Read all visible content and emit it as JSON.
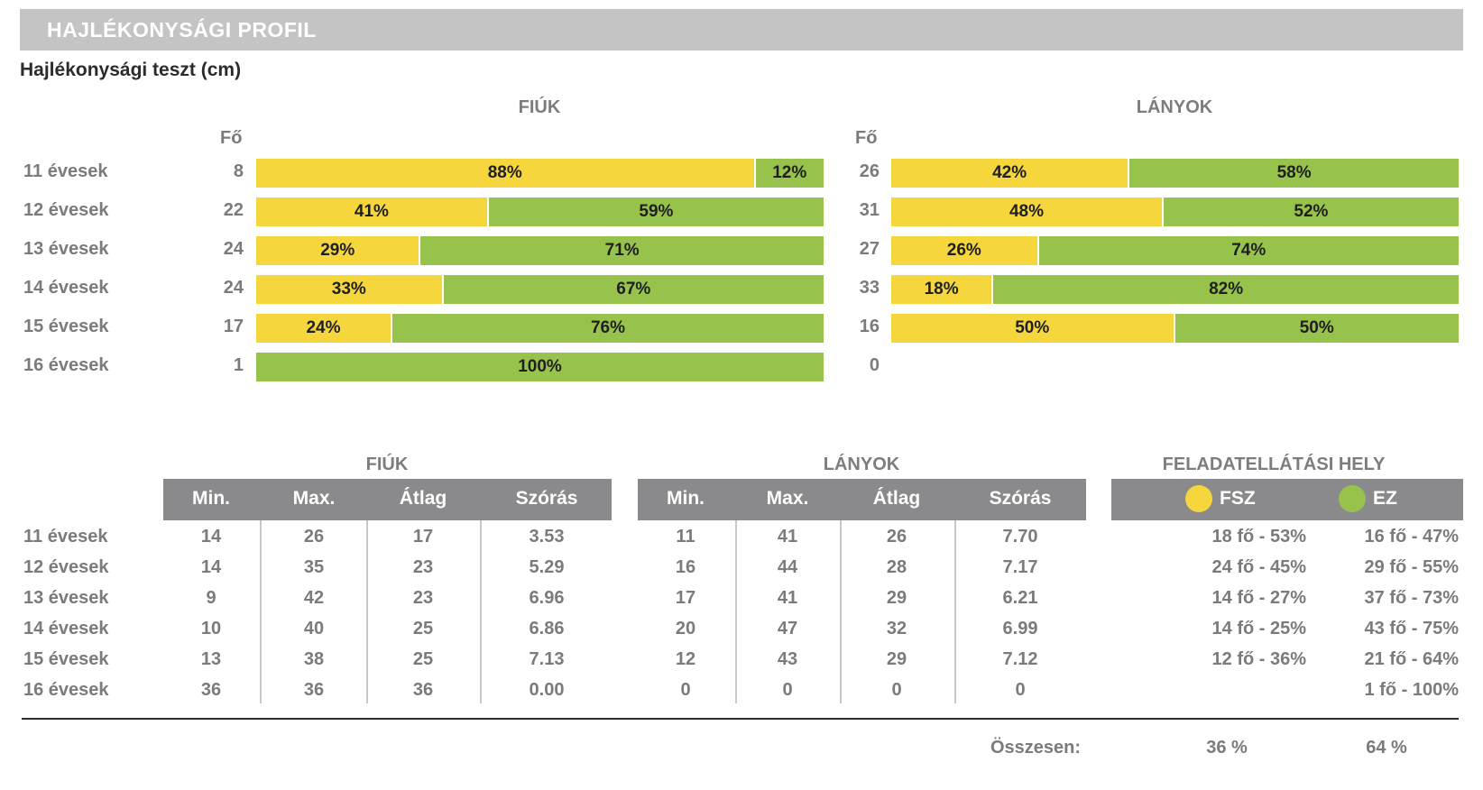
{
  "title": "HAJLÉKONYSÁGI PROFIL",
  "subtitle": "Hajlékonysági teszt (cm)",
  "colors": {
    "fsz": "#f5d63d",
    "ez": "#97c24c",
    "header_bg": "#8a8a8c",
    "banner_bg": "#c4c4c4"
  },
  "chart_data": {
    "type": "bar",
    "stacked": true,
    "orientation": "horizontal",
    "percent": true,
    "categories": [
      "11 évesek",
      "12 évesek",
      "13 évesek",
      "14 évesek",
      "15 évesek",
      "16 évesek"
    ],
    "count_header": "Fő",
    "panels": [
      {
        "title": "FIÚK",
        "counts": [
          "8",
          "22",
          "24",
          "24",
          "17",
          "1"
        ],
        "series": [
          {
            "values": [
              88,
              41,
              29,
              33,
              24,
              0
            ],
            "labels": [
              "88%",
              "41%",
              "29%",
              "33%",
              "24%",
              ""
            ]
          },
          {
            "values": [
              12,
              59,
              71,
              67,
              76,
              100
            ],
            "labels": [
              "12%",
              "59%",
              "71%",
              "67%",
              "76%",
              "100%"
            ]
          }
        ]
      },
      {
        "title": "LÁNYOK",
        "counts": [
          "26",
          "31",
          "27",
          "33",
          "16",
          "0"
        ],
        "series": [
          {
            "values": [
              42,
              48,
              26,
              18,
              50,
              0
            ],
            "labels": [
              "42%",
              "48%",
              "26%",
              "18%",
              "50%",
              ""
            ]
          },
          {
            "values": [
              58,
              52,
              74,
              82,
              50,
              0
            ],
            "labels": [
              "58%",
              "52%",
              "74%",
              "82%",
              "50%",
              ""
            ]
          }
        ]
      }
    ]
  },
  "stats_table": {
    "rows": [
      "11 évesek",
      "12 évesek",
      "13 évesek",
      "14 évesek",
      "15 évesek",
      "16 évesek"
    ],
    "columns": [
      "Min.",
      "Max.",
      "Átlag",
      "Szórás"
    ],
    "fiuk": {
      "title": "FIÚK",
      "values": [
        [
          "14",
          "26",
          "17",
          "3.53"
        ],
        [
          "14",
          "35",
          "23",
          "5.29"
        ],
        [
          "9",
          "42",
          "23",
          "6.96"
        ],
        [
          "10",
          "40",
          "25",
          "6.86"
        ],
        [
          "13",
          "38",
          "25",
          "7.13"
        ],
        [
          "36",
          "36",
          "36",
          "0.00"
        ]
      ]
    },
    "lanyok": {
      "title": "LÁNYOK",
      "values": [
        [
          "11",
          "41",
          "26",
          "7.70"
        ],
        [
          "16",
          "44",
          "28",
          "7.17"
        ],
        [
          "17",
          "41",
          "29",
          "6.21"
        ],
        [
          "20",
          "47",
          "32",
          "6.99"
        ],
        [
          "12",
          "43",
          "29",
          "7.12"
        ],
        [
          "0",
          "0",
          "0",
          "0"
        ]
      ]
    },
    "hely": {
      "title": "FELADATELLÁTÁSI HELY",
      "legend": [
        "FSZ",
        "EZ"
      ],
      "values": [
        [
          "18 fő - 53%",
          "16 fő - 47%"
        ],
        [
          "24 fő - 45%",
          "29 fő - 55%"
        ],
        [
          "14 fő - 27%",
          "37 fő - 73%"
        ],
        [
          "14 fő - 25%",
          "43 fő - 75%"
        ],
        [
          "12 fő - 36%",
          "21 fő - 64%"
        ],
        [
          "",
          "1 fő - 100%"
        ]
      ]
    },
    "total_label": "Összesen:",
    "total_values": [
      "36 %",
      "64 %"
    ]
  }
}
